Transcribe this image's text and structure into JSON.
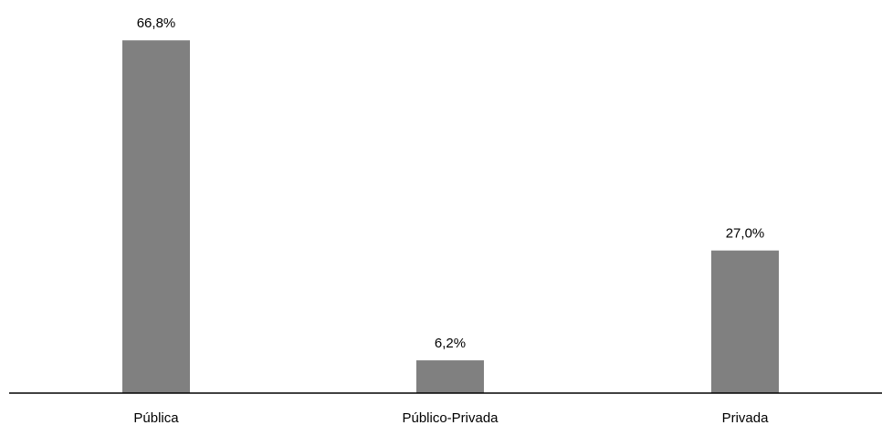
{
  "chart_data": {
    "type": "bar",
    "categories": [
      "Pública",
      "Público-Privada",
      "Privada"
    ],
    "values": [
      66.8,
      6.2,
      27.0
    ],
    "data_labels": [
      "66,8%",
      "6,2%",
      "27,0%"
    ],
    "title": "",
    "xlabel": "",
    "ylabel": "",
    "ylim": [
      0,
      75
    ],
    "grid": false,
    "legend": "none",
    "bar_color": "#808080",
    "axis_color": "#000000"
  }
}
